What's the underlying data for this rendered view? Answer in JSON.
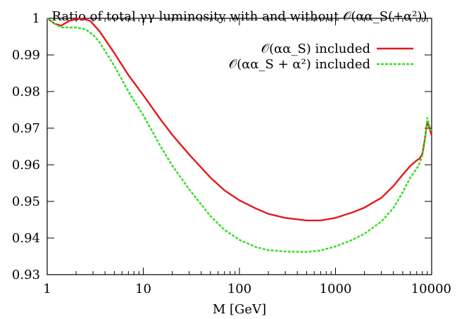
{
  "chart_data": {
    "type": "line",
    "title": "Ratio of total γγ luminosity with and without 𝒪(αα_S(+α²))",
    "xlabel": "M [GeV]",
    "ylabel": "",
    "xscale": "log",
    "xlim": [
      1,
      10000
    ],
    "ylim": [
      0.93,
      1.0
    ],
    "x_ticks": [
      1,
      10,
      100,
      1000,
      10000
    ],
    "x_tick_labels": [
      "1",
      "10",
      "100",
      "1000",
      "10000"
    ],
    "y_ticks": [
      0.93,
      0.94,
      0.95,
      0.96,
      0.97,
      0.98,
      0.99,
      1.0
    ],
    "y_tick_labels": [
      "0.93",
      "0.94",
      "0.95",
      "0.96",
      "0.97",
      "0.98",
      "0.99",
      "1"
    ],
    "grid": false,
    "legend_position": "top-right",
    "series": [
      {
        "name": "𝒪(αα_S) included",
        "color": "#e31a1c",
        "style": "solid",
        "x": [
          1,
          1.2,
          1.4,
          1.7,
          2.0,
          2.3,
          2.8,
          3.5,
          5,
          7,
          10,
          15,
          20,
          30,
          50,
          70,
          100,
          150,
          200,
          300,
          500,
          700,
          1000,
          1500,
          2000,
          3000,
          4000,
          5000,
          6000,
          7000,
          7500,
          8000,
          8500,
          9000,
          9500,
          10000
        ],
        "y": [
          1.0,
          0.9985,
          0.998,
          0.9993,
          0.9998,
          0.9999,
          0.9993,
          0.9965,
          0.9905,
          0.9845,
          0.979,
          0.9725,
          0.9682,
          0.9628,
          0.9565,
          0.953,
          0.9503,
          0.948,
          0.9466,
          0.9455,
          0.9448,
          0.9448,
          0.9455,
          0.947,
          0.9483,
          0.951,
          0.9542,
          0.9573,
          0.9597,
          0.9612,
          0.9617,
          0.963,
          0.967,
          0.9718,
          0.97,
          0.968
        ]
      },
      {
        "name": "𝒪(αα_S + α²) included",
        "color": "#33dd22",
        "style": "dashed",
        "x": [
          1,
          1.2,
          1.4,
          1.7,
          2.0,
          2.5,
          3.0,
          3.5,
          5,
          7,
          10,
          15,
          20,
          30,
          50,
          70,
          100,
          150,
          200,
          300,
          500,
          700,
          1000,
          1500,
          2000,
          3000,
          4000,
          5000,
          6000,
          7000,
          7500,
          8000,
          8500,
          9000,
          9500,
          10000
        ],
        "y": [
          1.0,
          0.9985,
          0.9975,
          0.9975,
          0.9975,
          0.997,
          0.9955,
          0.9935,
          0.987,
          0.98,
          0.9735,
          0.9652,
          0.9598,
          0.9533,
          0.946,
          0.9422,
          0.9395,
          0.9375,
          0.9367,
          0.9363,
          0.9362,
          0.9366,
          0.9377,
          0.9395,
          0.9412,
          0.9445,
          0.9482,
          0.9525,
          0.9565,
          0.959,
          0.9605,
          0.9625,
          0.9665,
          0.9728,
          0.9705,
          0.969
        ]
      }
    ]
  }
}
